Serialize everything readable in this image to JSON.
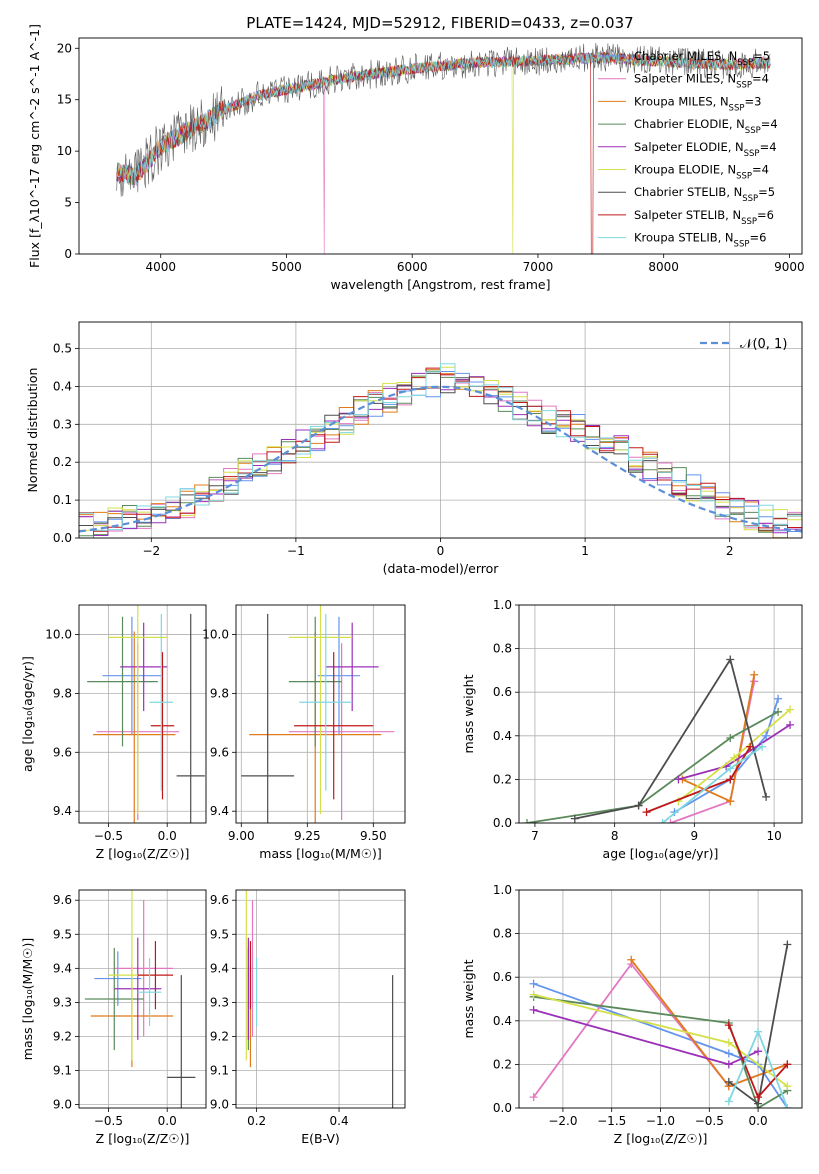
{
  "figure": {
    "title": "PLATE=1424, MJD=52912, FIBERID=0433, z=0.037"
  },
  "colors": {
    "chabrier_miles": "#6495ed",
    "salpeter_miles": "#e377c2",
    "kroupa_miles": "#e07b1a",
    "chabrier_elodie": "#5b8a5b",
    "salpeter_elodie": "#9b30b8",
    "kroupa_elodie": "#d4e04a",
    "chabrier_stelib": "#4d4d4d",
    "salpeter_stelib": "#c0181a",
    "kroupa_stelib": "#7fd8e0",
    "normal_curve": "#5b8fd8"
  },
  "chart_data": [
    {
      "panel": "spectrum",
      "type": "line",
      "xlabel": "wavelength [Angstrom, rest frame]",
      "ylabel": "Flux [f_λ10^-17 erg cm^-2 s^-1 A^-1]",
      "xlim": [
        3350,
        9100
      ],
      "ylim": [
        0,
        21
      ],
      "xticks": [
        "4000",
        "5000",
        "6000",
        "7000",
        "8000",
        "9000"
      ],
      "yticks": [
        "0",
        "5",
        "10",
        "15",
        "20"
      ],
      "data_points": [
        [
          3650,
          8
        ],
        [
          3800,
          7.5
        ],
        [
          4000,
          10.5
        ],
        [
          4300,
          12.5
        ],
        [
          4500,
          14
        ],
        [
          4800,
          15.5
        ],
        [
          5000,
          16
        ],
        [
          5500,
          17.2
        ],
        [
          6000,
          18
        ],
        [
          6500,
          18.6
        ],
        [
          7000,
          18.8
        ],
        [
          7500,
          19.1
        ],
        [
          8000,
          18.7
        ],
        [
          8500,
          18.4
        ],
        [
          8850,
          18.6
        ]
      ],
      "legend": [
        {
          "key": "chabrier_miles",
          "base": "Chabrier MILES, N",
          "sub": "SSP",
          "tail": "=5"
        },
        {
          "key": "salpeter_miles",
          "base": "Salpeter MILES, N",
          "sub": "SSP",
          "tail": "=4"
        },
        {
          "key": "kroupa_miles",
          "base": "Kroupa MILES, N",
          "sub": "SSP",
          "tail": "=3"
        },
        {
          "key": "chabrier_elodie",
          "base": "Chabrier ELODIE, N",
          "sub": "SSP",
          "tail": "=4"
        },
        {
          "key": "salpeter_elodie",
          "base": "Salpeter ELODIE, N",
          "sub": "SSP",
          "tail": "=4"
        },
        {
          "key": "kroupa_elodie",
          "base": "Kroupa ELODIE, N",
          "sub": "SSP",
          "tail": "=4"
        },
        {
          "key": "chabrier_stelib",
          "base": "Chabrier STELIB, N",
          "sub": "SSP",
          "tail": "=5"
        },
        {
          "key": "salpeter_stelib",
          "base": "Salpeter STELIB, N",
          "sub": "SSP",
          "tail": "=6"
        },
        {
          "key": "kroupa_stelib",
          "base": "Kroupa STELIB, N",
          "sub": "SSP",
          "tail": "=6"
        }
      ]
    },
    {
      "panel": "residuals",
      "type": "bar",
      "xlabel": "(data-model)/error",
      "ylabel": "Normed distribution",
      "xlim": [
        -2.5,
        2.5
      ],
      "ylim": [
        0,
        0.57
      ],
      "xticks": [
        "−2",
        "−1",
        "0",
        "1",
        "2"
      ],
      "yticks": [
        "0.0",
        "0.1",
        "0.2",
        "0.3",
        "0.4",
        "0.5"
      ],
      "bins_edges": [
        -2.5,
        2.5
      ],
      "n_bins": 50,
      "histogram_values": [
        0.035,
        0.03,
        0.04,
        0.05,
        0.06,
        0.07,
        0.08,
        0.09,
        0.11,
        0.13,
        0.15,
        0.17,
        0.19,
        0.21,
        0.23,
        0.25,
        0.27,
        0.29,
        0.31,
        0.34,
        0.36,
        0.37,
        0.39,
        0.4,
        0.41,
        0.42,
        0.4,
        0.39,
        0.38,
        0.37,
        0.35,
        0.33,
        0.31,
        0.3,
        0.29,
        0.27,
        0.25,
        0.23,
        0.21,
        0.19,
        0.17,
        0.15,
        0.13,
        0.11,
        0.09,
        0.07,
        0.06,
        0.05,
        0.04,
        0.03
      ],
      "legend": "𝒩(0, 1)"
    },
    {
      "panel": "age_vs_Z",
      "type": "scatter",
      "xlabel": "Z [log₁₀(Z/Z☉)]",
      "ylabel": "age  [log₁₀(age/yr)]",
      "xlim": [
        -0.75,
        0.33
      ],
      "ylim": [
        9.36,
        10.1
      ],
      "xticks": [
        "−0.5",
        "0.0"
      ],
      "yticks": [
        "9.4",
        "9.6",
        "9.8",
        "10.0"
      ],
      "points": [
        {
          "key": "chabrier_miles",
          "x": -0.3,
          "y": 9.86,
          "xerr": 0.25,
          "yerr": 0.2
        },
        {
          "key": "salpeter_miles",
          "x": -0.25,
          "y": 9.67,
          "xerr": 0.35,
          "yerr": 0.3
        },
        {
          "key": "kroupa_miles",
          "x": -0.28,
          "y": 9.66,
          "xerr": 0.35,
          "yerr": 0.35
        },
        {
          "key": "chabrier_elodie",
          "x": -0.38,
          "y": 9.84,
          "xerr": 0.3,
          "yerr": 0.22
        },
        {
          "key": "salpeter_elodie",
          "x": -0.2,
          "y": 9.89,
          "xerr": 0.2,
          "yerr": 0.15
        },
        {
          "key": "kroupa_elodie",
          "x": -0.25,
          "y": 9.99,
          "xerr": 0.25,
          "yerr": 0.6
        },
        {
          "key": "chabrier_stelib",
          "x": 0.2,
          "y": 9.52,
          "xerr": 0.12,
          "yerr": 0.55
        },
        {
          "key": "salpeter_stelib",
          "x": -0.04,
          "y": 9.69,
          "xerr": 0.1,
          "yerr": 0.25
        },
        {
          "key": "kroupa_stelib",
          "x": -0.05,
          "y": 9.77,
          "xerr": 0.1,
          "yerr": 0.3
        }
      ]
    },
    {
      "panel": "age_vs_mass",
      "type": "scatter",
      "xlabel": "mass [log₁₀(M/M☉)]",
      "ylabel": "",
      "xlim": [
        8.98,
        9.62
      ],
      "ylim": [
        9.36,
        10.1
      ],
      "xticks": [
        "9.00",
        "9.25",
        "9.50"
      ],
      "yticks": [
        "9.4",
        "9.6",
        "9.8",
        "10.0"
      ],
      "points": [
        {
          "key": "chabrier_miles",
          "x": 9.37,
          "y": 9.86,
          "xerr": 0.08,
          "yerr": 0.2
        },
        {
          "key": "salpeter_miles",
          "x": 9.38,
          "y": 9.67,
          "xerr": 0.2,
          "yerr": 0.3
        },
        {
          "key": "kroupa_miles",
          "x": 9.28,
          "y": 9.66,
          "xerr": 0.25,
          "yerr": 0.35
        },
        {
          "key": "chabrier_elodie",
          "x": 9.28,
          "y": 9.84,
          "xerr": 0.1,
          "yerr": 0.22
        },
        {
          "key": "salpeter_elodie",
          "x": 9.42,
          "y": 9.89,
          "xerr": 0.1,
          "yerr": 0.15
        },
        {
          "key": "kroupa_elodie",
          "x": 9.3,
          "y": 9.99,
          "xerr": 0.12,
          "yerr": 0.6
        },
        {
          "key": "chabrier_stelib",
          "x": 9.1,
          "y": 9.52,
          "xerr": 0.1,
          "yerr": 0.55
        },
        {
          "key": "salpeter_stelib",
          "x": 9.35,
          "y": 9.69,
          "xerr": 0.15,
          "yerr": 0.25
        },
        {
          "key": "kroupa_stelib",
          "x": 9.32,
          "y": 9.77,
          "xerr": 0.1,
          "yerr": 0.3
        }
      ]
    },
    {
      "panel": "mass_weight_vs_age",
      "type": "line",
      "xlabel": "age  [log₁₀(age/yr)]",
      "ylabel": "mass weight",
      "xlim": [
        6.8,
        10.35
      ],
      "ylim": [
        0,
        1
      ],
      "xticks": [
        "7",
        "8",
        "9",
        "10"
      ],
      "yticks": [
        "0.0",
        "0.2",
        "0.4",
        "0.6",
        "0.8",
        "1.0"
      ],
      "series": [
        {
          "key": "chabrier_miles",
          "values": [
            [
              8.75,
              0.05
            ],
            [
              9.45,
              0.2
            ],
            [
              9.9,
              0.4
            ],
            [
              10.05,
              0.57
            ]
          ]
        },
        {
          "key": "salpeter_miles",
          "values": [
            [
              8.7,
              0.0
            ],
            [
              9.45,
              0.1
            ],
            [
              9.75,
              0.65
            ]
          ]
        },
        {
          "key": "kroupa_miles",
          "values": [
            [
              8.85,
              0.2
            ],
            [
              9.45,
              0.1
            ],
            [
              9.75,
              0.68
            ]
          ]
        },
        {
          "key": "chabrier_elodie",
          "values": [
            [
              6.9,
              0.0
            ],
            [
              8.3,
              0.08
            ],
            [
              9.45,
              0.39
            ],
            [
              10.05,
              0.51
            ]
          ]
        },
        {
          "key": "salpeter_elodie",
          "values": [
            [
              8.8,
              0.2
            ],
            [
              9.4,
              0.26
            ],
            [
              10.2,
              0.45
            ]
          ]
        },
        {
          "key": "kroupa_elodie",
          "values": [
            [
              8.8,
              0.1
            ],
            [
              9.5,
              0.3
            ],
            [
              10.2,
              0.52
            ]
          ]
        },
        {
          "key": "chabrier_stelib",
          "values": [
            [
              7.5,
              0.02
            ],
            [
              8.3,
              0.08
            ],
            [
              9.45,
              0.75
            ],
            [
              9.9,
              0.12
            ]
          ]
        },
        {
          "key": "salpeter_stelib",
          "values": [
            [
              8.4,
              0.05
            ],
            [
              9.45,
              0.2
            ],
            [
              9.7,
              0.35
            ]
          ]
        },
        {
          "key": "kroupa_stelib",
          "values": [
            [
              8.6,
              0.0
            ],
            [
              9.45,
              0.25
            ],
            [
              9.85,
              0.35
            ]
          ]
        }
      ]
    },
    {
      "panel": "mass_vs_Z",
      "type": "scatter",
      "xlabel": "Z [log₁₀(Z/Z☉)]",
      "ylabel": "mass [log₁₀(M/M☉)]",
      "xlim": [
        -0.75,
        0.33
      ],
      "ylim": [
        8.99,
        9.63
      ],
      "xticks": [
        "−0.5",
        "0.0"
      ],
      "yticks": [
        "9.0",
        "9.1",
        "9.2",
        "9.3",
        "9.4",
        "9.5",
        "9.6"
      ],
      "points": [
        {
          "key": "chabrier_miles",
          "x": -0.42,
          "y": 9.37,
          "xerr": 0.2,
          "yerr": 0.08
        },
        {
          "key": "salpeter_miles",
          "x": -0.2,
          "y": 9.4,
          "xerr": 0.25,
          "yerr": 0.2
        },
        {
          "key": "kroupa_miles",
          "x": -0.3,
          "y": 9.26,
          "xerr": 0.35,
          "yerr": 0.15
        },
        {
          "key": "chabrier_elodie",
          "x": -0.45,
          "y": 9.31,
          "xerr": 0.25,
          "yerr": 0.15
        },
        {
          "key": "salpeter_elodie",
          "x": -0.25,
          "y": 9.34,
          "xerr": 0.2,
          "yerr": 0.15
        },
        {
          "key": "kroupa_elodie",
          "x": -0.3,
          "y": 9.38,
          "xerr": 0.2,
          "yerr": 0.25
        },
        {
          "key": "chabrier_stelib",
          "x": 0.12,
          "y": 9.08,
          "xerr": 0.12,
          "yerr": 0.3
        },
        {
          "key": "salpeter_stelib",
          "x": -0.1,
          "y": 9.38,
          "xerr": 0.15,
          "yerr": 0.1
        },
        {
          "key": "kroupa_stelib",
          "x": -0.15,
          "y": 9.33,
          "xerr": 0.1,
          "yerr": 0.1
        }
      ]
    },
    {
      "panel": "mass_vs_ebv",
      "type": "scatter",
      "xlabel": "E(B-V)",
      "ylabel": "",
      "xlim": [
        0.15,
        0.56
      ],
      "ylim": [
        8.99,
        9.63
      ],
      "xticks": [
        "0.2",
        "0.4"
      ],
      "yticks": [
        "9.0",
        "9.1",
        "9.2",
        "9.3",
        "9.4",
        "9.5",
        "9.6"
      ],
      "points": [
        {
          "key": "chabrier_miles",
          "x": 0.19,
          "y": 9.37,
          "yerr": 0.08
        },
        {
          "key": "salpeter_miles",
          "x": 0.19,
          "y": 9.4,
          "yerr": 0.2
        },
        {
          "key": "kroupa_miles",
          "x": 0.185,
          "y": 9.26,
          "yerr": 0.15
        },
        {
          "key": "chabrier_elodie",
          "x": 0.18,
          "y": 9.31,
          "yerr": 0.15
        },
        {
          "key": "salpeter_elodie",
          "x": 0.18,
          "y": 9.34,
          "yerr": 0.15
        },
        {
          "key": "kroupa_elodie",
          "x": 0.175,
          "y": 9.38,
          "yerr": 0.25
        },
        {
          "key": "chabrier_stelib",
          "x": 0.53,
          "y": 9.08,
          "yerr": 0.3
        },
        {
          "key": "salpeter_stelib",
          "x": 0.185,
          "y": 9.38,
          "yerr": 0.1
        },
        {
          "key": "kroupa_stelib",
          "x": 0.2,
          "y": 9.33,
          "yerr": 0.1
        }
      ]
    },
    {
      "panel": "mass_weight_vs_Z",
      "type": "line",
      "xlabel": "Z [log₁₀(Z/Z☉)]",
      "ylabel": "mass weight",
      "xlim": [
        -2.45,
        0.45
      ],
      "ylim": [
        0,
        1
      ],
      "xticks": [
        "−2.0",
        "−1.5",
        "−1.0",
        "−0.5",
        "0.0"
      ],
      "yticks": [
        "0.0",
        "0.2",
        "0.4",
        "0.6",
        "0.8",
        "1.0"
      ],
      "series": [
        {
          "key": "chabrier_miles",
          "values": [
            [
              -2.3,
              0.57
            ],
            [
              -0.3,
              0.25
            ],
            [
              0,
              0.2
            ],
            [
              0.3,
              0.0
            ]
          ]
        },
        {
          "key": "salpeter_miles",
          "values": [
            [
              -2.3,
              0.05
            ],
            [
              -1.3,
              0.66
            ],
            [
              -0.3,
              0.1
            ],
            [
              0.3,
              0.2
            ]
          ]
        },
        {
          "key": "kroupa_miles",
          "values": [
            [
              -1.3,
              0.68
            ],
            [
              -0.3,
              0.1
            ],
            [
              0.3,
              0.2
            ]
          ]
        },
        {
          "key": "chabrier_elodie",
          "values": [
            [
              -2.3,
              0.51
            ],
            [
              -0.3,
              0.39
            ],
            [
              0,
              0.0
            ],
            [
              0.3,
              0.08
            ]
          ]
        },
        {
          "key": "salpeter_elodie",
          "values": [
            [
              -2.3,
              0.45
            ],
            [
              -0.3,
              0.2
            ],
            [
              0,
              0.26
            ]
          ]
        },
        {
          "key": "kroupa_elodie",
          "values": [
            [
              -2.3,
              0.52
            ],
            [
              -0.3,
              0.3
            ],
            [
              0.3,
              0.1
            ]
          ]
        },
        {
          "key": "chabrier_stelib",
          "values": [
            [
              -0.3,
              0.12
            ],
            [
              0,
              0.02
            ],
            [
              0.3,
              0.75
            ]
          ]
        },
        {
          "key": "salpeter_stelib",
          "values": [
            [
              -0.3,
              0.38
            ],
            [
              0,
              0.05
            ],
            [
              0.3,
              0.2
            ]
          ]
        },
        {
          "key": "kroupa_stelib",
          "values": [
            [
              -0.3,
              0.03
            ],
            [
              0,
              0.35
            ],
            [
              0.3,
              0.0
            ]
          ]
        }
      ]
    }
  ]
}
